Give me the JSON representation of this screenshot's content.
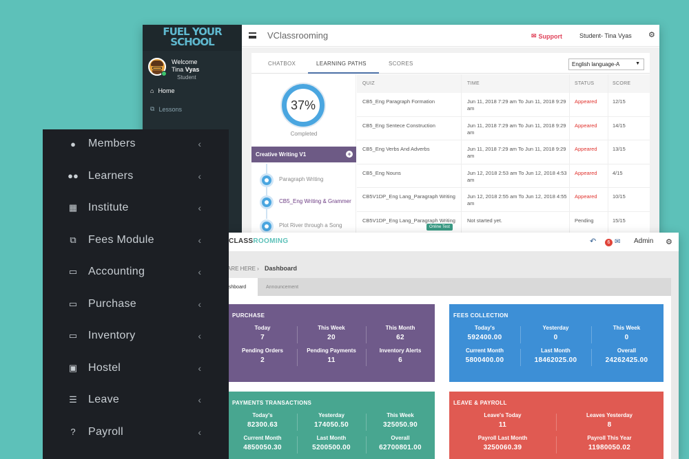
{
  "learner_window": {
    "logo_line1": "FUEL YOUR",
    "logo_line2": "SCHOOL",
    "welcome": "Welcome",
    "user_first": "Tina",
    "user_last": "Vyas",
    "role": "Student",
    "nav": [
      {
        "label": "Home",
        "icon": "home-icon"
      },
      {
        "label": "Lessons",
        "icon": "copy-icon"
      }
    ],
    "brand": "VClassrooming",
    "support": "Support",
    "student_name": "Student- Tina Vyas",
    "tabs": [
      "CHATBOX",
      "LEARNING PATHS",
      "SCORES"
    ],
    "active_tab": "LEARNING PATHS",
    "language": "English language-A",
    "progress": "37%",
    "progress_value": 37,
    "completed": "Completed",
    "path_title": "Creative Writing V1",
    "path_items": [
      "Paragraph Writing",
      "CB5_Eng Writing & Grammer",
      "Plot River through a Song"
    ],
    "columns": [
      "QUIZ",
      "TIME",
      "STATUS",
      "SCORE"
    ],
    "rows": [
      {
        "quiz": "CB5_Eng Paragraph Formation",
        "time": "Jun 11, 2018  7:29 am To Jun 11, 2018  9:29 am",
        "status": "Appeared",
        "score": "12/15"
      },
      {
        "quiz": "CB5_Eng Sentece Construction",
        "time": "Jun 11, 2018  7:29 am To Jun 11, 2018  9:29 am",
        "status": "Appeared",
        "score": "14/15"
      },
      {
        "quiz": "CB5_Eng Verbs And Adverbs",
        "time": "Jun 11, 2018  7:29 am To Jun 11, 2018  9:29 am",
        "status": "Appeared",
        "score": "13/15"
      },
      {
        "quiz": "CB5_Eng Nouns",
        "time": "Jun 12, 2018  2:53 am To Jun 12, 2018  4:53 am",
        "status": "Appeared",
        "score": "4/15"
      },
      {
        "quiz": "CB5V1DP_Eng Lang_Paragraph Writing",
        "time": "Jun 12, 2018  2:55 am To Jun 12, 2018  4:55 am",
        "status": "Appeared",
        "score": "10/15"
      },
      {
        "quiz": "CB5V1DP_Eng Lang_Paragraph Writing",
        "time": "Not started yet.",
        "status": "Pending",
        "score": "15/15"
      }
    ],
    "online_test": "Online Test"
  },
  "admin_window": {
    "brand_dark": "CLASS",
    "brand_accent": "ROOMING",
    "notification_count": "6",
    "user": "Admin",
    "crumb_prefix": "ARE HERE",
    "crumb_page": "Dashboard",
    "tabs": [
      "ashboard",
      "Announcement"
    ],
    "cards": {
      "purchase": {
        "title": "PURCHASE",
        "color": "#6f5a8a",
        "cells": [
          {
            "label": "Today",
            "value": "7"
          },
          {
            "label": "This Week",
            "value": "20"
          },
          {
            "label": "This Month",
            "value": "62"
          },
          {
            "label": "Pending Orders",
            "value": "2"
          },
          {
            "label": "Pending Payments",
            "value": "11"
          },
          {
            "label": "Inventory Alerts",
            "value": "6"
          }
        ]
      },
      "fees": {
        "title": "FEES COLLECTION",
        "color": "#3d8fd6",
        "cells": [
          {
            "label": "Today's",
            "value": "592400.00"
          },
          {
            "label": "Yesterday",
            "value": "0"
          },
          {
            "label": "This Week",
            "value": "0"
          },
          {
            "label": "Current Month",
            "value": "5800400.00"
          },
          {
            "label": "Last Month",
            "value": "18462025.00"
          },
          {
            "label": "Overall",
            "value": "24262425.00"
          }
        ]
      },
      "payments": {
        "title": "PAYMENTS TRANSACTIONS",
        "color": "#48a690",
        "cells": [
          {
            "label": "Today's",
            "value": "82300.63"
          },
          {
            "label": "Yesterday",
            "value": "174050.50"
          },
          {
            "label": "This Week",
            "value": "325050.90"
          },
          {
            "label": "Current Month",
            "value": "4850050.30"
          },
          {
            "label": "Last Month",
            "value": "5200500.00"
          },
          {
            "label": "Overall",
            "value": "62700801.00"
          }
        ]
      },
      "leave": {
        "title": "LEAVE & PAYROLL",
        "color": "#e05a52",
        "cells": [
          {
            "label": "Leave's Today",
            "value": "11"
          },
          {
            "label": "Leaves Yesterday",
            "value": "8"
          },
          {
            "label": "Payroll Last Month",
            "value": "3250060.39"
          },
          {
            "label": "Payroll This Year",
            "value": "11980050.02"
          }
        ]
      }
    }
  },
  "overlay_sidebar": {
    "items": [
      {
        "label": "Members",
        "icon": "user-icon"
      },
      {
        "label": "Learners",
        "icon": "users-icon"
      },
      {
        "label": "Institute",
        "icon": "grid-icon"
      },
      {
        "label": "Fees Module",
        "icon": "document-icon"
      },
      {
        "label": "Accounting",
        "icon": "drive-icon"
      },
      {
        "label": "Purchase",
        "icon": "drive-icon"
      },
      {
        "label": "Inventory",
        "icon": "drive-icon"
      },
      {
        "label": "Hostel",
        "icon": "building-icon"
      },
      {
        "label": "Leave",
        "icon": "list-icon"
      },
      {
        "label": "Payroll",
        "icon": "question-icon"
      }
    ]
  }
}
